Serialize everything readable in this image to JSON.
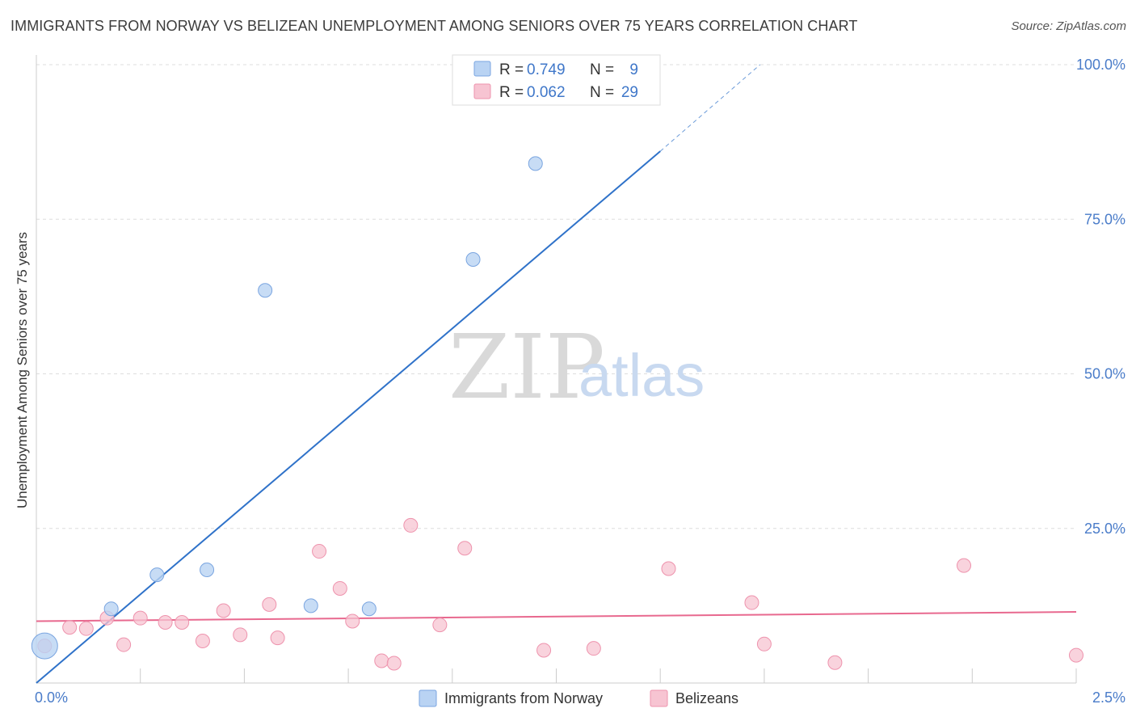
{
  "title": "IMMIGRANTS FROM NORWAY VS BELIZEAN UNEMPLOYMENT AMONG SENIORS OVER 75 YEARS CORRELATION CHART",
  "source": "Source: ZipAtlas.com",
  "colors": {
    "blue_fill": "#b9d3f3",
    "blue_stroke": "#7aa5e0",
    "blue_line": "#2f72c9",
    "pink_fill": "#f7c4d2",
    "pink_stroke": "#ee93ad",
    "pink_line": "#e8698f",
    "grid": "#dddddd",
    "tick_label": "#4a7cc9"
  },
  "watermark": {
    "zip": "ZIP",
    "atlas": "atlas"
  },
  "chart_data": {
    "type": "scatter",
    "title": "IMMIGRANTS FROM NORWAY VS BELIZEAN UNEMPLOYMENT AMONG SENIORS OVER 75 YEARS CORRELATION CHART",
    "xlabel": "",
    "ylabel": "Unemployment Among Seniors over 75 years",
    "xlim": [
      0,
      2.5
    ],
    "ylim": [
      0,
      100
    ],
    "x_tick_labels": [
      {
        "value": 0,
        "label": "0.0%"
      },
      {
        "value": 2.5,
        "label": "2.5%"
      }
    ],
    "y_tick_labels": [
      {
        "value": 25,
        "label": "25.0%"
      },
      {
        "value": 50,
        "label": "50.0%"
      },
      {
        "value": 75,
        "label": "75.0%"
      },
      {
        "value": 100,
        "label": "100.0%"
      }
    ],
    "legend": [
      {
        "key": "norway",
        "r_label": "R =",
        "r_value": "0.749",
        "n_label": "N =",
        "n_value": "9"
      },
      {
        "key": "belize",
        "r_label": "R =",
        "r_value": "0.062",
        "n_label": "N =",
        "n_value": "29"
      }
    ],
    "series": [
      {
        "key": "norway",
        "name": "Immigrants from Norway",
        "points": [
          {
            "x": 0.02,
            "y": 6.0,
            "big": true
          },
          {
            "x": 0.18,
            "y": 12.0
          },
          {
            "x": 0.29,
            "y": 17.5
          },
          {
            "x": 0.41,
            "y": 18.3
          },
          {
            "x": 0.55,
            "y": 63.5
          },
          {
            "x": 0.66,
            "y": 12.5
          },
          {
            "x": 0.8,
            "y": 12.0
          },
          {
            "x": 1.05,
            "y": 68.5
          },
          {
            "x": 1.2,
            "y": 84.0
          }
        ],
        "trend": {
          "x_start": 0,
          "y_start": 0,
          "x_end": 1.5,
          "y_end": 86.0,
          "x_dash_end": 1.74,
          "y_dash_end": 100
        }
      },
      {
        "key": "belize",
        "name": "Belizeans",
        "points": [
          {
            "x": 0.02,
            "y": 6.0
          },
          {
            "x": 0.08,
            "y": 9.0
          },
          {
            "x": 0.12,
            "y": 8.8
          },
          {
            "x": 0.17,
            "y": 10.5
          },
          {
            "x": 0.21,
            "y": 6.2
          },
          {
            "x": 0.25,
            "y": 10.5
          },
          {
            "x": 0.31,
            "y": 9.8
          },
          {
            "x": 0.35,
            "y": 9.8
          },
          {
            "x": 0.4,
            "y": 6.8
          },
          {
            "x": 0.45,
            "y": 11.7
          },
          {
            "x": 0.49,
            "y": 7.8
          },
          {
            "x": 0.56,
            "y": 12.7
          },
          {
            "x": 0.58,
            "y": 7.3
          },
          {
            "x": 0.68,
            "y": 21.3
          },
          {
            "x": 0.73,
            "y": 15.3
          },
          {
            "x": 0.76,
            "y": 10.0
          },
          {
            "x": 0.83,
            "y": 3.6
          },
          {
            "x": 0.86,
            "y": 3.2
          },
          {
            "x": 0.9,
            "y": 25.5
          },
          {
            "x": 0.97,
            "y": 9.4
          },
          {
            "x": 1.03,
            "y": 21.8
          },
          {
            "x": 1.22,
            "y": 5.3
          },
          {
            "x": 1.34,
            "y": 5.6
          },
          {
            "x": 1.52,
            "y": 18.5
          },
          {
            "x": 1.72,
            "y": 13.0
          },
          {
            "x": 1.75,
            "y": 6.3
          },
          {
            "x": 1.92,
            "y": 3.3
          },
          {
            "x": 2.23,
            "y": 19.0
          },
          {
            "x": 2.5,
            "y": 4.5
          }
        ],
        "trend": {
          "x_start": 0,
          "y_start": 10.0,
          "x_end": 2.5,
          "y_end": 11.5
        }
      }
    ]
  }
}
